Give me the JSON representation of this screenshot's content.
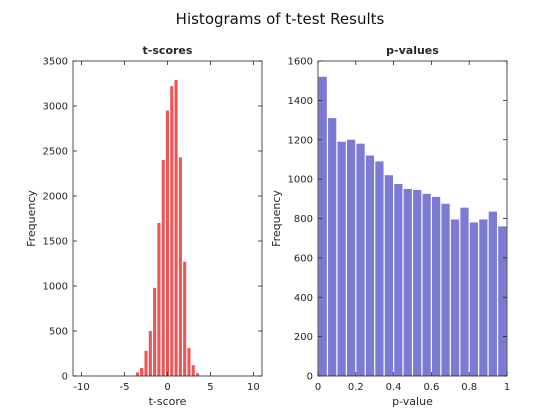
{
  "figure": {
    "title": "Histograms of t-test Results"
  },
  "chart_data": [
    {
      "type": "bar",
      "title": "t-scores",
      "xlabel": "t-score",
      "ylabel": "Frequency",
      "xlim": [
        -11,
        11
      ],
      "ylim": [
        0,
        3500
      ],
      "xticks": [
        -10,
        -5,
        0,
        5,
        10
      ],
      "yticks": [
        0,
        500,
        1000,
        1500,
        2000,
        2500,
        3000,
        3500
      ],
      "bar_color": "#ee5555",
      "bin_width": 0.5,
      "x": [
        -4.0,
        -3.5,
        -3.0,
        -2.5,
        -2.0,
        -1.5,
        -1.0,
        -0.5,
        0.0,
        0.5,
        1.0,
        1.5,
        2.0,
        2.5,
        3.0,
        3.5,
        4.0
      ],
      "values": [
        5,
        40,
        90,
        280,
        500,
        980,
        1700,
        2400,
        2950,
        3220,
        3290,
        2430,
        1270,
        310,
        120,
        30,
        5
      ]
    },
    {
      "type": "bar",
      "title": "p-values",
      "xlabel": "p-value",
      "ylabel": "Frequency",
      "xlim": [
        0,
        1
      ],
      "ylim": [
        0,
        1600
      ],
      "xticks": [
        0,
        0.2,
        0.4,
        0.6,
        0.8,
        1
      ],
      "xtick_labels": [
        "0",
        "0.2",
        "0.4",
        "0.6",
        "0.8",
        "1"
      ],
      "yticks": [
        0,
        200,
        400,
        600,
        800,
        1000,
        1200,
        1400,
        1600
      ],
      "bar_color": "#7b7bd4",
      "bin_width": 0.05,
      "x": [
        0.025,
        0.075,
        0.125,
        0.175,
        0.225,
        0.275,
        0.325,
        0.375,
        0.425,
        0.475,
        0.525,
        0.575,
        0.625,
        0.675,
        0.725,
        0.775,
        0.825,
        0.875,
        0.925,
        0.975
      ],
      "values": [
        1520,
        1310,
        1190,
        1200,
        1180,
        1120,
        1090,
        1020,
        975,
        950,
        945,
        925,
        910,
        875,
        795,
        855,
        780,
        795,
        835,
        760
      ]
    }
  ]
}
